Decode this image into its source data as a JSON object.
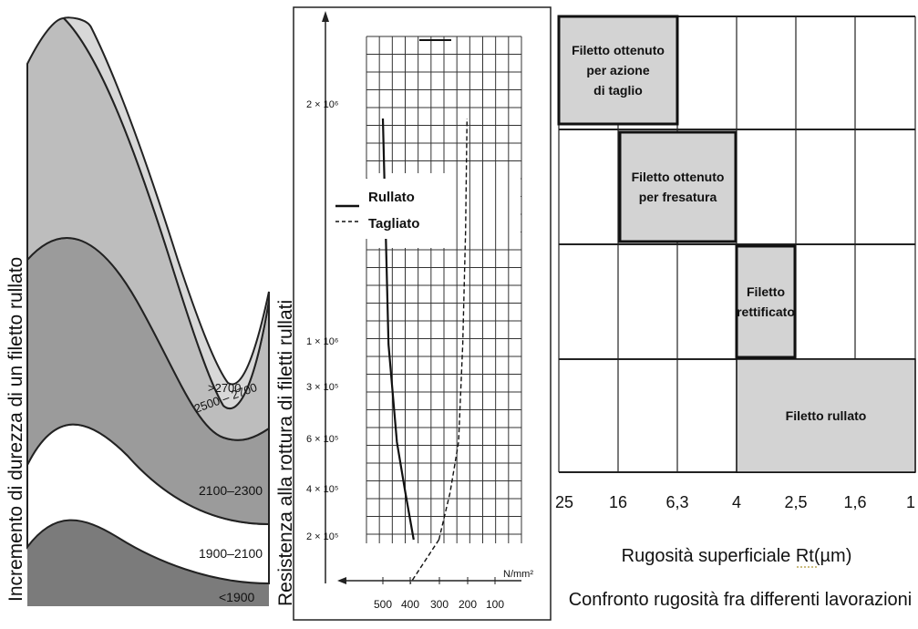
{
  "hardness_chart": {
    "ylabel": "Incremento di durezza di un filetto rullato",
    "bands": [
      ">2700",
      "2500 – 2700",
      "2100–2300",
      "1900–2100",
      "<1900"
    ]
  },
  "fatigue_chart": {
    "ylabel": "Resistenza alla rottura di filetti rullati",
    "xunit": "N/mm²",
    "xticks": [
      "500",
      "400",
      "300",
      "200",
      "100"
    ],
    "ytick_labels": [
      "2 × 10⁶",
      "1 × 10⁶",
      "3 × 10⁵",
      "6 × 10⁵",
      "4 × 10⁵",
      "2 × 10⁵"
    ],
    "legend": [
      "Rullato",
      "Tagliato"
    ]
  },
  "roughness_chart": {
    "xticks": [
      "25",
      "16",
      "6,3",
      "4",
      "2,5",
      "1,6",
      "1"
    ],
    "xlabel": "Rugosità superficiale Rt(µm)",
    "caption": "Confronto rugosità fra differenti lavorazioni",
    "boxes": [
      {
        "lines": [
          "Filetto ottenuto",
          "per azione",
          "di taglio"
        ]
      },
      {
        "lines": [
          "Filetto ottenuto",
          "per fresatura"
        ]
      },
      {
        "lines": [
          "Filetto",
          "rettificato"
        ]
      },
      {
        "lines": [
          "Filetto rullato"
        ]
      }
    ]
  },
  "chart_data": [
    {
      "type": "area",
      "ylabel": "Incremento di durezza di un filetto rullato",
      "series": [
        {
          "name": ">2700"
        },
        {
          "name": "2500 – 2700"
        },
        {
          "name": "2100–2300"
        },
        {
          "name": "1900–2100"
        },
        {
          "name": "<1900"
        }
      ]
    },
    {
      "type": "line",
      "ylabel": "Resistenza alla rottura di filetti rullati",
      "xunit": "N/mm²",
      "x_ticks": [
        500,
        400,
        300,
        200,
        100
      ],
      "series": [
        {
          "name": "Rullato",
          "x": [
            390,
            420,
            450,
            480,
            490,
            500
          ],
          "y": [
            200000,
            400000,
            600000,
            1000000,
            1500000,
            2000000
          ]
        },
        {
          "name": "Tagliato",
          "x": [
            300,
            260,
            230,
            215,
            205,
            200
          ],
          "y": [
            200000,
            400000,
            600000,
            1000000,
            1500000,
            2000000
          ]
        }
      ]
    },
    {
      "type": "bar",
      "xlabel": "Rugosità superficiale Rt(µm)",
      "x_ticks": [
        "25",
        "16",
        "6,3",
        "4",
        "2,5",
        "1,6",
        "1"
      ],
      "series": [
        {
          "name": "Filetto ottenuto per azione di taglio",
          "range": [
            "25",
            "6,3"
          ]
        },
        {
          "name": "Filetto ottenuto per fresatura",
          "range": [
            "16",
            "4"
          ]
        },
        {
          "name": "Filetto rettificato",
          "range": [
            "4",
            "2,5"
          ]
        },
        {
          "name": "Filetto rullato",
          "range": [
            "4",
            "1"
          ]
        }
      ]
    }
  ]
}
